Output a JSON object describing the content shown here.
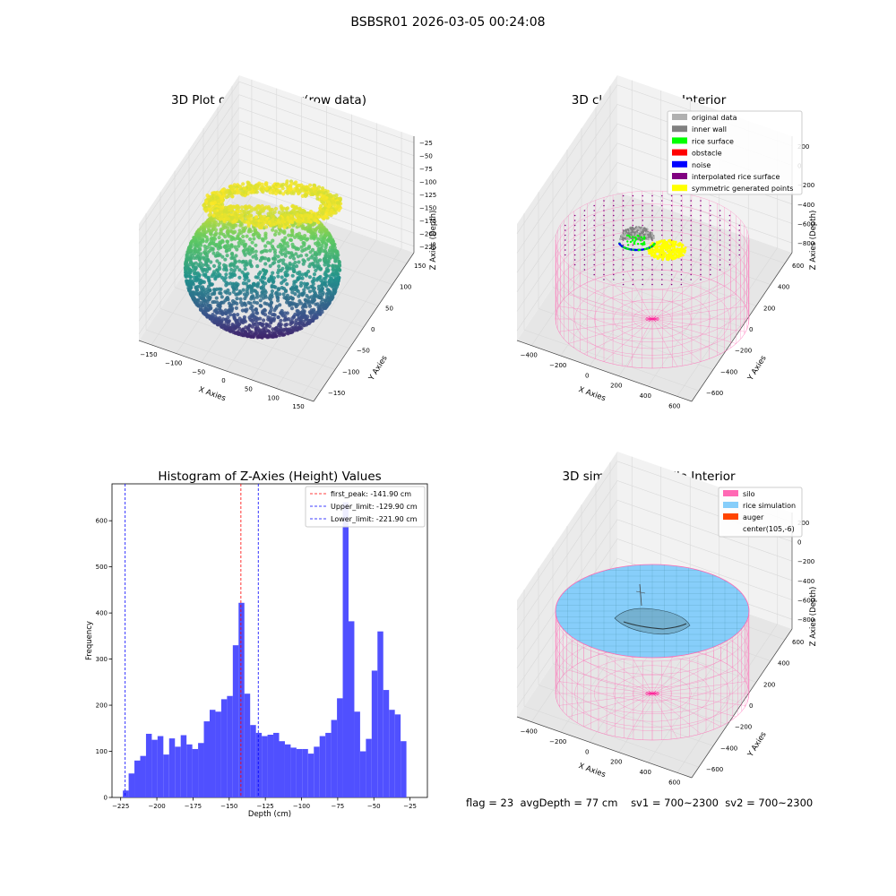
{
  "figure": {
    "suptitle": "BSBSR01 2026-03-05 00:24:08",
    "stats": {
      "flag": "flag = 23",
      "avg_depth": "avgDepth = 77 cm",
      "sv1": "sv1 = 700~2300",
      "sv2": "sv2 = 700~2300"
    }
  },
  "colors": {
    "histogram_bar": "#5050ff",
    "first_peak_line": "#ff0000",
    "limit_line": "#0000ff",
    "silo": "#ff69b4",
    "rice_simulation": "#87cefa",
    "auger": "#ff4500",
    "original_data": "#b0b0b0",
    "inner_wall": "#808080",
    "rice_surface": "#00ff00",
    "obstacle": "#ff0000",
    "noise": "#0000ff",
    "interpolated_rice_surface": "#800080",
    "symmetric_generated_points": "#ffff00"
  },
  "chart_data": [
    {
      "type": "scatter",
      "projection": "3d",
      "title": "3D Plot of Silo Interior(row data)",
      "xlabel": "X Axies",
      "ylabel": "Y Axies",
      "zlabel": "Z Axies (Depth)",
      "xticks": [
        "−150",
        "−100",
        "−50",
        "0",
        "50",
        "100",
        "150"
      ],
      "yticks": [
        "−150",
        "−100",
        "−50",
        "0",
        "50",
        "100",
        "150"
      ],
      "zticks": [
        "−225",
        "−200",
        "−175",
        "−150",
        "−125",
        "−100",
        "−75",
        "−50",
        "−25"
      ],
      "colormap": "viridis"
    },
    {
      "type": "scatter",
      "projection": "3d",
      "title": "3D classify of Silo Interior",
      "xlabel": "X Axies",
      "ylabel": "Y Axies",
      "zlabel": "Z Axies (Depth)",
      "xticks": [
        "−400",
        "−200",
        "0",
        "200",
        "400",
        "600"
      ],
      "yticks": [
        "−600",
        "−400",
        "−200",
        "0",
        "200",
        "400",
        "600"
      ],
      "zticks": [
        "−800",
        "−600",
        "−400",
        "−200",
        "0",
        "200"
      ],
      "legend_placement": "top-right",
      "legend": [
        {
          "label": "original data",
          "color": "#b0b0b0"
        },
        {
          "label": "inner wall",
          "color": "#808080"
        },
        {
          "label": "rice surface",
          "color": "#00ff00"
        },
        {
          "label": "obstacle",
          "color": "#ff0000"
        },
        {
          "label": "noise",
          "color": "#0000ff"
        },
        {
          "label": "interpolated rice surface",
          "color": "#800080"
        },
        {
          "label": "symmetric generated points",
          "color": "#ffff00"
        }
      ]
    },
    {
      "type": "bar",
      "title": "Histogram of Z-Axies (Height) Values",
      "xlabel": "Depth (cm)",
      "ylabel": "Frequency",
      "xlim": [
        -231,
        -13
      ],
      "ylim": [
        0,
        680
      ],
      "bin_start": -223.5,
      "bin_width": 4,
      "values": [
        15,
        52,
        80,
        90,
        138,
        125,
        133,
        93,
        128,
        110,
        135,
        115,
        105,
        118,
        165,
        190,
        186,
        213,
        220,
        330,
        422,
        225,
        157,
        140,
        133,
        136,
        140,
        122,
        115,
        108,
        105,
        105,
        95,
        110,
        133,
        140,
        168,
        215,
        640,
        382,
        186,
        100,
        127,
        275,
        360,
        233,
        190,
        180,
        122
      ],
      "xticks": [
        -225,
        -200,
        -175,
        -150,
        -125,
        -100,
        -75,
        -50,
        -25
      ],
      "xtick_labels": [
        "−225",
        "−200",
        "−175",
        "−150",
        "−125",
        "−100",
        "−75",
        "−50",
        "−25"
      ],
      "yticks": [
        0,
        100,
        200,
        300,
        400,
        500,
        600
      ],
      "lines": [
        {
          "label": "first_peak: -141.90 cm",
          "x": -141.9,
          "color": "#ff0000"
        },
        {
          "label": "Upper_limit: -129.90 cm",
          "x": -129.9,
          "color": "#0000ff"
        },
        {
          "label": "Lower_limit: -221.90 cm",
          "x": -221.9,
          "color": "#0000ff"
        }
      ],
      "legend_placement": "top-right"
    },
    {
      "type": "area",
      "projection": "3d",
      "title": "3D simulation of Silo Interior",
      "xlabel": "X Axies",
      "ylabel": "Y Axies",
      "zlabel": "Z Axies (Depth)",
      "xticks": [
        "−400",
        "−200",
        "0",
        "200",
        "400",
        "600"
      ],
      "yticks": [
        "−600",
        "−400",
        "−200",
        "0",
        "200",
        "400",
        "600"
      ],
      "zticks": [
        "−800",
        "−600",
        "−400",
        "−200",
        "0",
        "200"
      ],
      "legend_placement": "top-right",
      "legend": [
        {
          "label": "silo",
          "color": "#ff69b4"
        },
        {
          "label": "rice simulation",
          "color": "#87cefa"
        },
        {
          "label": "auger",
          "color": "#ff4500"
        },
        {
          "label": "center(105,-6)",
          "color": ""
        }
      ]
    }
  ]
}
